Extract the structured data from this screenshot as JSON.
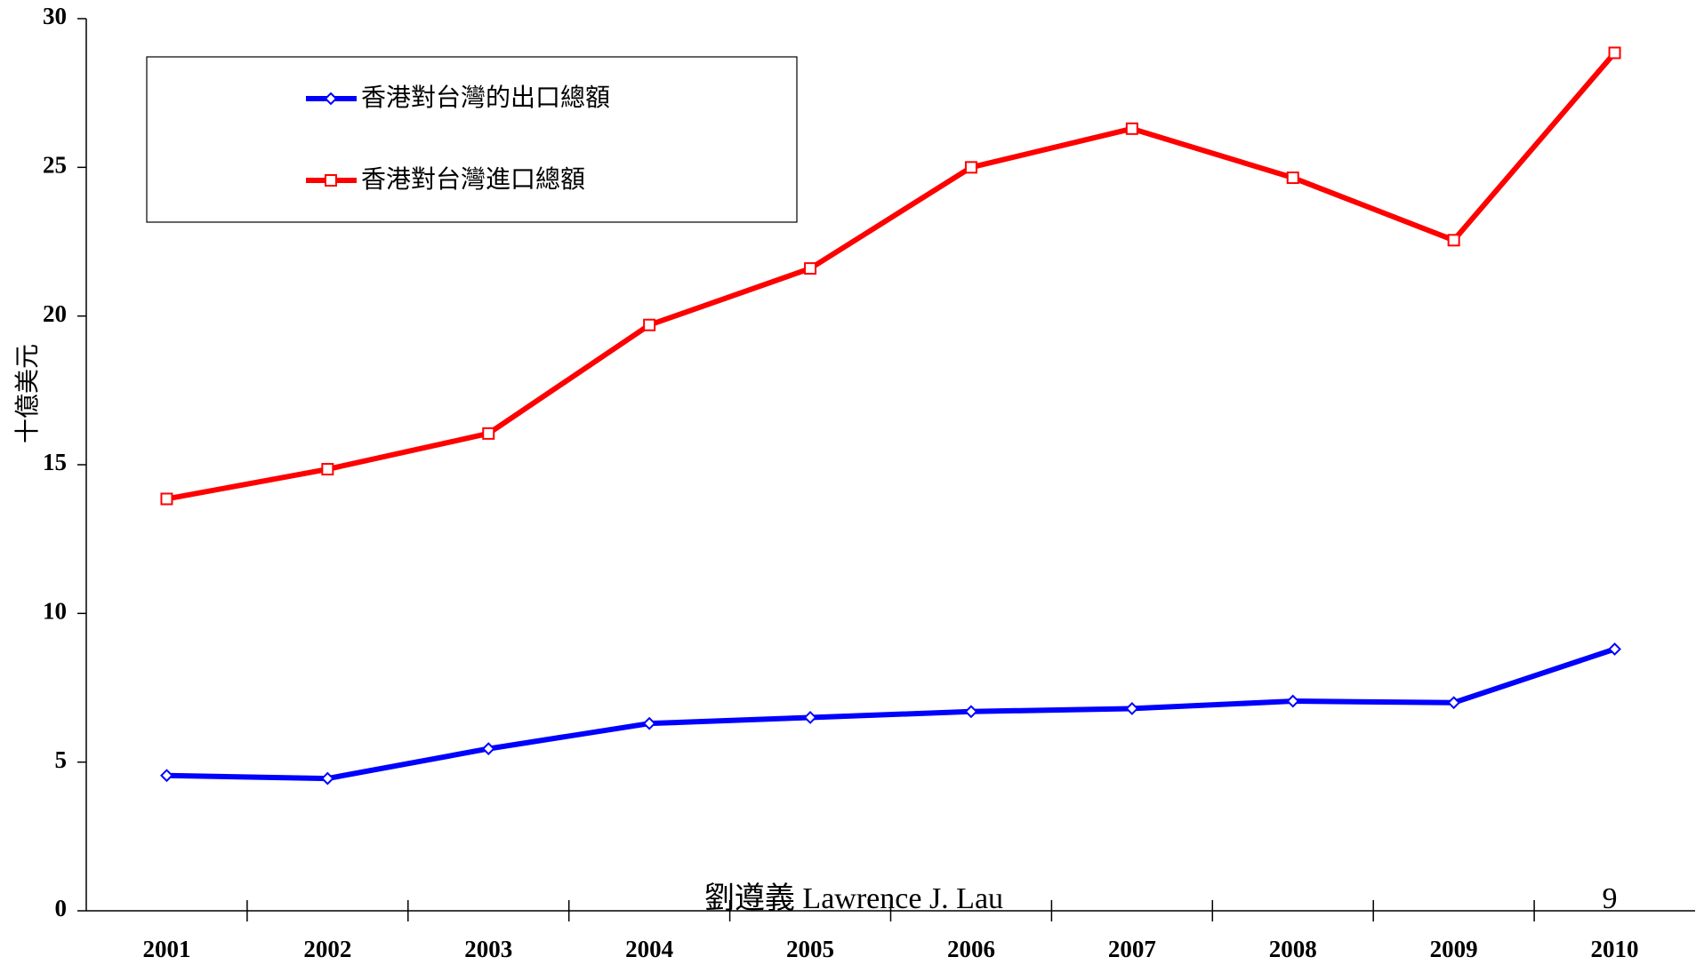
{
  "chart_data": {
    "type": "line",
    "y_label": "十億美元",
    "categories": [
      "2001",
      "2002",
      "2003",
      "2004",
      "2005",
      "2006",
      "2007",
      "2008",
      "2009",
      "2010"
    ],
    "series": [
      {
        "name": "香港對台灣的出口總額",
        "color": "#0000ff",
        "marker": "diamond",
        "values": [
          4.55,
          4.45,
          5.45,
          6.3,
          6.5,
          6.7,
          6.8,
          7.05,
          7.0,
          8.8
        ]
      },
      {
        "name": "香港對台灣進口總額",
        "color": "#ff0000",
        "marker": "square",
        "values": [
          13.85,
          14.85,
          16.05,
          19.7,
          21.6,
          25.0,
          26.3,
          24.65,
          22.55,
          28.85
        ]
      }
    ],
    "ylim": [
      0,
      30
    ],
    "yticks": [
      0,
      5,
      10,
      15,
      20,
      25,
      30
    ],
    "grid": false,
    "footer": "劉遵義 Lawrence J. Lau",
    "page_number": "9"
  }
}
